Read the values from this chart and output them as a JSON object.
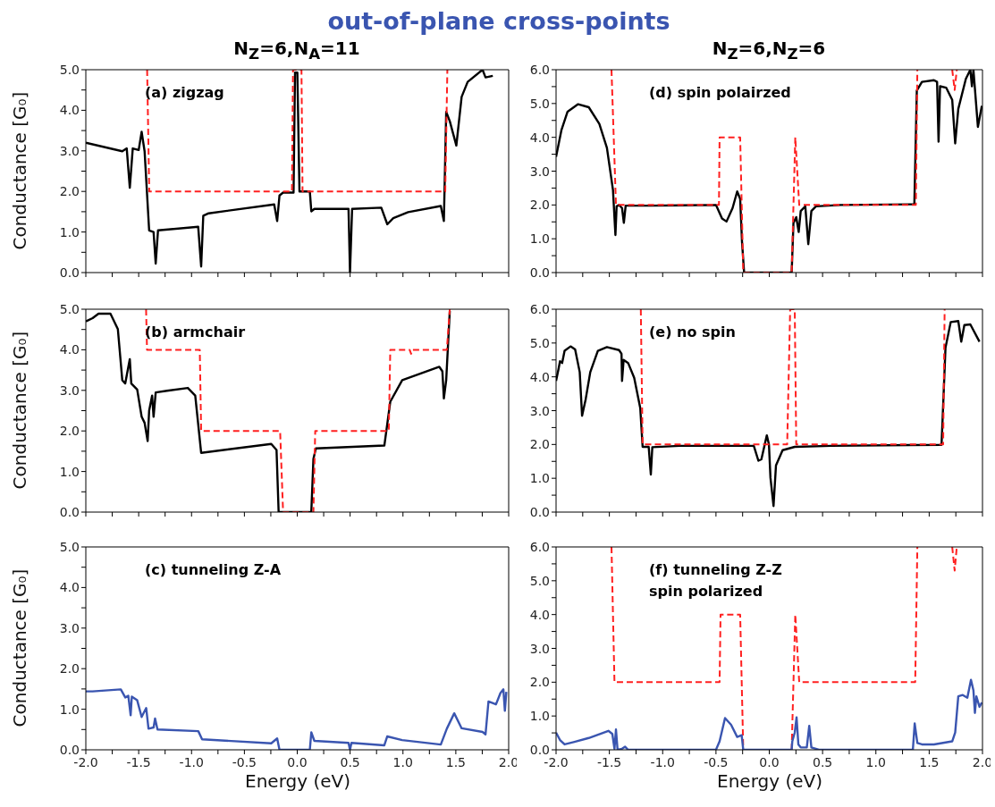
{
  "chart_data": [
    {
      "type": "line",
      "title": "out-of-plane cross-points",
      "subtitle": "N$_{Z}$=6,N$_{A}$=11",
      "ylabel": "Conductance [G₀]",
      "annotations": [
        "(a) zigzag"
      ],
      "tick_labels": "y",
      "xlim": [
        -2,
        2
      ],
      "xticks": [
        -2,
        -1.75,
        -1.5,
        -1.25,
        -1,
        -0.75,
        -0.5,
        -0.25,
        0,
        0.25,
        0.5,
        0.75,
        1,
        1.25,
        1.5,
        1.75,
        2
      ],
      "ylim": [
        0,
        5
      ],
      "yticks": [
        {
          "value": 0,
          "label": "0.0"
        },
        {
          "value": 0.5,
          "label": null
        },
        {
          "value": 1,
          "label": "1.0"
        },
        {
          "value": 1.5,
          "label": null
        },
        {
          "value": 2,
          "label": "2.0"
        },
        {
          "value": 2.5,
          "label": null
        },
        {
          "value": 3,
          "label": "3.0"
        },
        {
          "value": 3.5,
          "label": null
        },
        {
          "value": 4,
          "label": "4.0"
        },
        {
          "value": 4.5,
          "label": null
        },
        {
          "value": 5,
          "label": "5.0"
        }
      ],
      "series": [
        {
          "color": "#000000",
          "x": [
            -2,
            -1.655,
            -1.613,
            -1.584,
            -1.556,
            -1.5,
            -1.472,
            -1.444,
            -1.401,
            -1.359,
            -1.339,
            -1.317,
            -0.937,
            -0.909,
            -0.889,
            -0.838,
            -0.218,
            -0.19,
            -0.168,
            -0.134,
            -0.035,
            -0.021,
            0.001,
            0.021,
            0.119,
            0.133,
            0.162,
            0.485,
            0.499,
            0.519,
            0.795,
            0.852,
            0.908,
            1.049,
            1.358,
            1.387,
            1.409,
            1.443,
            1.505,
            1.555,
            1.612,
            1.753,
            1.781,
            1.85
          ],
          "values": [
            3.2,
            2.99,
            3.06,
            2.09,
            3.06,
            3.02,
            3.47,
            2.99,
            1.04,
            1.0,
            0.22,
            1.04,
            1.13,
            0.15,
            1.4,
            1.46,
            1.68,
            1.27,
            1.9,
            1.97,
            1.97,
            4.93,
            4.93,
            2.0,
            2.0,
            1.51,
            1.57,
            1.57,
            0,
            1.57,
            1.6,
            1.19,
            1.34,
            1.49,
            1.64,
            1.27,
            3.96,
            3.73,
            3.13,
            4.33,
            4.7,
            5.0,
            4.81,
            4.85
          ]
        },
        {
          "color": "#ff2020",
          "line_style": "dashed",
          "x": [
            -1.42,
            -1.4,
            -0.05,
            -0.04,
            0.04,
            0.05,
            1.4,
            1.42
          ],
          "values": [
            5,
            2,
            2,
            5,
            5,
            2,
            2,
            5
          ]
        }
      ]
    },
    {
      "type": "line",
      "subtitle": "N$_{Z}$=6,N$_{Z}$=6",
      "annotations": [
        "(d) spin polairzed"
      ],
      "tick_labels": "y",
      "xlim": [
        -2,
        2
      ],
      "xticks": [
        -2,
        -1.75,
        -1.5,
        -1.25,
        -1,
        -0.75,
        -0.5,
        -0.25,
        0,
        0.25,
        0.5,
        0.75,
        1,
        1.25,
        1.5,
        1.75,
        2
      ],
      "ylim": [
        0,
        6
      ],
      "yticks": [
        {
          "value": 0,
          "label": "0.0"
        },
        {
          "value": 0.5,
          "label": null
        },
        {
          "value": 1,
          "label": "1.0"
        },
        {
          "value": 1.5,
          "label": null
        },
        {
          "value": 2,
          "label": "2.0"
        },
        {
          "value": 2.5,
          "label": null
        },
        {
          "value": 3,
          "label": "3.0"
        },
        {
          "value": 3.5,
          "label": null
        },
        {
          "value": 4,
          "label": "4.0"
        },
        {
          "value": 4.5,
          "label": null
        },
        {
          "value": 5,
          "label": "5.0"
        },
        {
          "value": 5.5,
          "label": null
        },
        {
          "value": 6,
          "label": "6.0"
        }
      ],
      "series": [
        {
          "color": "#000000",
          "x": [
            -2,
            -1.949,
            -1.892,
            -1.793,
            -1.693,
            -1.594,
            -1.523,
            -1.466,
            -1.443,
            -1.432,
            -1.409,
            -1.381,
            -1.364,
            -1.347,
            -1.125,
            -0.5,
            -0.443,
            -0.401,
            -0.344,
            -0.301,
            -0.273,
            -0.256,
            -0.236,
            0.21,
            0.227,
            0.253,
            0.276,
            0.295,
            0.338,
            0.366,
            0.395,
            0.438,
            0.665,
            1.361,
            1.384,
            1.432,
            1.545,
            1.574,
            1.588,
            1.602,
            1.659,
            1.716,
            1.744,
            1.773,
            1.844,
            1.886,
            1.901,
            1.915,
            1.957,
            1.994
          ],
          "values": [
            3.42,
            4.22,
            4.76,
            4.98,
            4.89,
            4.4,
            3.69,
            2.44,
            1.11,
            1.96,
            2.0,
            1.91,
            1.47,
            1.98,
            1.98,
            2.0,
            1.6,
            1.51,
            1.91,
            2.4,
            2.18,
            0.93,
            0,
            0,
            1.47,
            1.64,
            1.2,
            1.82,
            1.96,
            0.84,
            1.82,
            1.96,
            2.0,
            2.02,
            5.38,
            5.64,
            5.69,
            5.64,
            3.87,
            5.51,
            5.47,
            5.11,
            3.82,
            4.84,
            5.73,
            6.0,
            5.51,
            6.0,
            4.31,
            4.93
          ]
        },
        {
          "color": "#ff2020",
          "line_style": "dashed",
          "x": [
            -1.48,
            -1.438,
            -0.472,
            -0.466,
            -0.273,
            -0.244,
            0.21,
            0.244,
            0.281,
            1.375,
            1.389,
            1.5,
            1.716,
            1.739,
            1.759
          ],
          "values": [
            6,
            2,
            2,
            4,
            4,
            0,
            0,
            4,
            2,
            2,
            6,
            null,
            6,
            5.4,
            6
          ]
        }
      ]
    },
    {
      "type": "line",
      "ylabel": "Conductance [G₀]",
      "annotations": [
        "(b) armchair"
      ],
      "tick_labels": "y",
      "xlim": [
        -2,
        2
      ],
      "xticks": [
        -2,
        -1.75,
        -1.5,
        -1.25,
        -1,
        -0.75,
        -0.5,
        -0.25,
        0,
        0.25,
        0.5,
        0.75,
        1,
        1.25,
        1.5,
        1.75,
        2
      ],
      "ylim": [
        0,
        5
      ],
      "yticks": [
        {
          "value": 0,
          "label": "0.0"
        },
        {
          "value": 0.5,
          "label": null
        },
        {
          "value": 1,
          "label": "1.0"
        },
        {
          "value": 1.5,
          "label": null
        },
        {
          "value": 2,
          "label": "2.0"
        },
        {
          "value": 2.5,
          "label": null
        },
        {
          "value": 3,
          "label": "3.0"
        },
        {
          "value": 3.5,
          "label": null
        },
        {
          "value": 4,
          "label": "4.0"
        },
        {
          "value": 4.5,
          "label": null
        },
        {
          "value": 5,
          "label": "5.0"
        }
      ],
      "series": [
        {
          "color": "#000000",
          "x": [
            -2,
            -1.936,
            -1.88,
            -1.767,
            -1.697,
            -1.655,
            -1.627,
            -1.584,
            -1.57,
            -1.514,
            -1.472,
            -1.444,
            -1.415,
            -1.401,
            -1.373,
            -1.359,
            -1.339,
            -1.232,
            -1.035,
            -0.965,
            -0.909,
            -0.246,
            -0.196,
            -0.176,
            -0.168,
            0.133,
            0.153,
            0.176,
            0.824,
            0.88,
            0.993,
            1.344,
            1.373,
            1.387,
            1.409,
            1.443
          ],
          "values": [
            4.7,
            4.78,
            4.89,
            4.89,
            4.51,
            3.25,
            3.17,
            3.77,
            3.17,
            3.02,
            2.35,
            2.2,
            1.75,
            2.5,
            2.87,
            2.35,
            2.95,
            2.99,
            3.06,
            2.87,
            1.46,
            1.68,
            1.53,
            0,
            0,
            0,
            1.31,
            1.57,
            1.64,
            2.72,
            3.25,
            3.58,
            3.47,
            2.8,
            3.25,
            4.96
          ]
        },
        {
          "color": "#ff2020",
          "line_style": "dashed",
          "x": [
            -1.43,
            -1.421,
            -0.922,
            -0.909,
            -0.162,
            -0.134,
            0.153,
            0.17,
            0.866,
            0.88,
            1.063,
            1.077,
            1.091,
            1.415,
            1.443
          ],
          "values": [
            5,
            4,
            4,
            2,
            2,
            0,
            0,
            2,
            2,
            4,
            4,
            3.9,
            4,
            4,
            5
          ]
        }
      ]
    },
    {
      "type": "line",
      "annotations": [
        "(e) no spin"
      ],
      "tick_labels": "y",
      "xlim": [
        -2,
        2
      ],
      "xticks": [
        -2,
        -1.75,
        -1.5,
        -1.25,
        -1,
        -0.75,
        -0.5,
        -0.25,
        0,
        0.25,
        0.5,
        0.75,
        1,
        1.25,
        1.5,
        1.75,
        2
      ],
      "ylim": [
        0,
        6
      ],
      "yticks": [
        {
          "value": 0,
          "label": "0.0"
        },
        {
          "value": 0.5,
          "label": null
        },
        {
          "value": 1,
          "label": "1.0"
        },
        {
          "value": 1.5,
          "label": null
        },
        {
          "value": 2,
          "label": "2.0"
        },
        {
          "value": 2.5,
          "label": null
        },
        {
          "value": 3,
          "label": "3.0"
        },
        {
          "value": 3.5,
          "label": null
        },
        {
          "value": 4,
          "label": "4.0"
        },
        {
          "value": 4.5,
          "label": null
        },
        {
          "value": 5,
          "label": "5.0"
        },
        {
          "value": 5.5,
          "label": null
        },
        {
          "value": 6,
          "label": "6.0"
        }
      ],
      "series": [
        {
          "color": "#000000",
          "x": [
            -2,
            -1.977,
            -1.963,
            -1.943,
            -1.92,
            -1.864,
            -1.821,
            -1.778,
            -1.756,
            -1.722,
            -1.679,
            -1.608,
            -1.523,
            -1.409,
            -1.386,
            -1.381,
            -1.366,
            -1.324,
            -1.267,
            -1.21,
            -1.188,
            -1.131,
            -1.111,
            -1.097,
            -0.841,
            -0.145,
            -0.102,
            -0.074,
            -0.023,
            -0.003,
            0.011,
            0.04,
            0.063,
            0.125,
            0.239,
            0.58,
            1.616,
            1.653,
            1.702,
            1.773,
            1.801,
            1.83,
            1.886,
            1.972
          ],
          "values": [
            3.88,
            4.23,
            4.46,
            4.41,
            4.77,
            4.9,
            4.81,
            4.14,
            2.85,
            3.34,
            4.14,
            4.77,
            4.88,
            4.79,
            4.68,
            3.88,
            4.5,
            4.41,
            3.97,
            3.07,
            1.93,
            1.93,
            1.11,
            1.92,
            1.96,
            1.96,
            1.52,
            1.56,
            2.27,
            2.0,
            1.02,
            0.18,
            1.38,
            1.83,
            1.93,
            1.96,
            1.99,
            4.86,
            5.62,
            5.65,
            5.04,
            5.53,
            5.55,
            5.04
          ]
        },
        {
          "color": "#ff2020",
          "line_style": "dashed",
          "x": [
            -1.205,
            -1.188,
            0.168,
            0.196,
            0.239,
            0.253,
            1.631,
            1.645
          ],
          "values": [
            6,
            2,
            2,
            6,
            6,
            2,
            2,
            6
          ]
        }
      ]
    },
    {
      "type": "line",
      "ylabel": "Conductance [G₀]",
      "xlabel": "Energy (eV)",
      "annotations": [
        "(c) tunneling Z-A"
      ],
      "xlim": [
        -2,
        2
      ],
      "xticks": [
        {
          "value": -2,
          "label": "-2.0"
        },
        {
          "value": -1.75,
          "label": null
        },
        {
          "value": -1.5,
          "label": "-1.5"
        },
        {
          "value": -1.25,
          "label": null
        },
        {
          "value": -1,
          "label": "-1.0"
        },
        {
          "value": -0.75,
          "label": null
        },
        {
          "value": -0.5,
          "label": "-0.5"
        },
        {
          "value": -0.25,
          "label": null
        },
        {
          "value": 0,
          "label": "0.0"
        },
        {
          "value": 0.25,
          "label": null
        },
        {
          "value": 0.5,
          "label": "0.5"
        },
        {
          "value": 0.75,
          "label": null
        },
        {
          "value": 1,
          "label": "1.0"
        },
        {
          "value": 1.25,
          "label": null
        },
        {
          "value": 1.5,
          "label": "1.5"
        },
        {
          "value": 1.75,
          "label": null
        },
        {
          "value": 2,
          "label": "2.0"
        }
      ],
      "ylim": [
        0,
        5
      ],
      "yticks": [
        {
          "value": 0,
          "label": "0.0"
        },
        {
          "value": 0.5,
          "label": null
        },
        {
          "value": 1,
          "label": "1.0"
        },
        {
          "value": 1.5,
          "label": null
        },
        {
          "value": 2,
          "label": "2.0"
        },
        {
          "value": 2.5,
          "label": null
        },
        {
          "value": 3,
          "label": "3.0"
        },
        {
          "value": 3.5,
          "label": null
        },
        {
          "value": 4,
          "label": "4.0"
        },
        {
          "value": 4.5,
          "label": null
        },
        {
          "value": 5,
          "label": "5.0"
        }
      ],
      "series": [
        {
          "color": "#3a55b0",
          "x": [
            -2,
            -1.936,
            -1.669,
            -1.627,
            -1.598,
            -1.576,
            -1.565,
            -1.514,
            -1.472,
            -1.429,
            -1.407,
            -1.359,
            -1.345,
            -1.322,
            -0.936,
            -0.9,
            -0.246,
            -0.19,
            -0.168,
            0.119,
            0.133,
            0.162,
            0.485,
            0.499,
            0.513,
            0.823,
            0.851,
            0.992,
            1.358,
            1.415,
            1.485,
            1.555,
            1.753,
            1.781,
            1.809,
            1.88,
            1.922,
            1.95,
            1.964,
            1.978
          ],
          "values": [
            1.44,
            1.44,
            1.49,
            1.29,
            1.33,
            0.85,
            1.31,
            1.22,
            0.81,
            1.03,
            0.52,
            0.55,
            0.77,
            0.5,
            0.46,
            0.26,
            0.16,
            0.28,
            0,
            0,
            0.43,
            0.22,
            0.17,
            0,
            0.17,
            0.11,
            0.33,
            0.24,
            0.13,
            0.52,
            0.9,
            0.53,
            0.44,
            0.38,
            1.19,
            1.12,
            1.4,
            1.49,
            0.96,
            1.43
          ]
        }
      ]
    },
    {
      "type": "line",
      "xlabel": "Energy (eV)",
      "annotations": [
        "(f) tunneling Z-Z\nspin polarized"
      ],
      "xlim": [
        -2,
        2
      ],
      "xticks": [
        {
          "value": -2,
          "label": "-2.0"
        },
        {
          "value": -1.75,
          "label": null
        },
        {
          "value": -1.5,
          "label": "-1.5"
        },
        {
          "value": -1.25,
          "label": null
        },
        {
          "value": -1,
          "label": "-1.0"
        },
        {
          "value": -0.75,
          "label": null
        },
        {
          "value": -0.5,
          "label": "-0.5"
        },
        {
          "value": -0.25,
          "label": null
        },
        {
          "value": 0,
          "label": "0.0"
        },
        {
          "value": 0.25,
          "label": null
        },
        {
          "value": 0.5,
          "label": "0.5"
        },
        {
          "value": 0.75,
          "label": null
        },
        {
          "value": 1,
          "label": "1.0"
        },
        {
          "value": 1.25,
          "label": null
        },
        {
          "value": 1.5,
          "label": "1.5"
        },
        {
          "value": 1.75,
          "label": null
        },
        {
          "value": 2,
          "label": "2.0"
        }
      ],
      "ylim": [
        0,
        6
      ],
      "yticks": [
        {
          "value": 0,
          "label": "0.0"
        },
        {
          "value": 0.5,
          "label": null
        },
        {
          "value": 1,
          "label": "1.0"
        },
        {
          "value": 1.5,
          "label": null
        },
        {
          "value": 2,
          "label": "2.0"
        },
        {
          "value": 2.5,
          "label": null
        },
        {
          "value": 3,
          "label": "3.0"
        },
        {
          "value": 3.5,
          "label": null
        },
        {
          "value": 4,
          "label": "4.0"
        },
        {
          "value": 4.5,
          "label": null
        },
        {
          "value": 5,
          "label": "5.0"
        },
        {
          "value": 5.5,
          "label": null
        },
        {
          "value": 6,
          "label": "6.0"
        }
      ],
      "series": [
        {
          "color": "#ff2020",
          "line_style": "dashed",
          "x": [
            -1.48,
            -1.452,
            -0.466,
            -0.457,
            -0.273,
            -0.244,
            0.21,
            0.244,
            0.281,
            1.369,
            1.389,
            1.5,
            1.716,
            1.739,
            1.759
          ],
          "values": [
            6,
            2,
            2,
            4,
            4,
            0,
            0,
            4,
            2,
            2,
            6,
            null,
            6,
            5.3,
            6
          ]
        },
        {
          "color": "#3a55b0",
          "x": [
            -2,
            -1.963,
            -1.92,
            -1.835,
            -1.693,
            -1.509,
            -1.472,
            -1.452,
            -1.438,
            -1.423,
            -1.381,
            -1.352,
            -1.324,
            -0.5,
            -0.466,
            -0.415,
            -0.358,
            -0.301,
            -0.259,
            -0.244,
            0.21,
            0.216,
            0.239,
            0.256,
            0.273,
            0.295,
            0.352,
            0.375,
            0.395,
            0.466,
            1.347,
            1.364,
            1.389,
            1.432,
            1.545,
            1.716,
            1.744,
            1.773,
            1.815,
            1.858,
            1.892,
            1.915,
            1.929,
            1.943,
            1.972,
            1.994
          ],
          "values": [
            0.51,
            0.29,
            0.16,
            0.23,
            0.35,
            0.56,
            0.47,
            0.03,
            0.6,
            0,
            0.03,
            0.09,
            0,
            0,
            0.25,
            0.94,
            0.74,
            0.38,
            0.43,
            0,
            0,
            0.25,
            0.51,
            0.96,
            0.16,
            0.07,
            0.07,
            0.71,
            0.07,
            0,
            0,
            0.78,
            0.2,
            0.16,
            0.16,
            0.25,
            0.51,
            1.58,
            1.62,
            1.54,
            2.07,
            1.76,
            1.09,
            1.58,
            1.27,
            1.4
          ]
        }
      ]
    }
  ]
}
